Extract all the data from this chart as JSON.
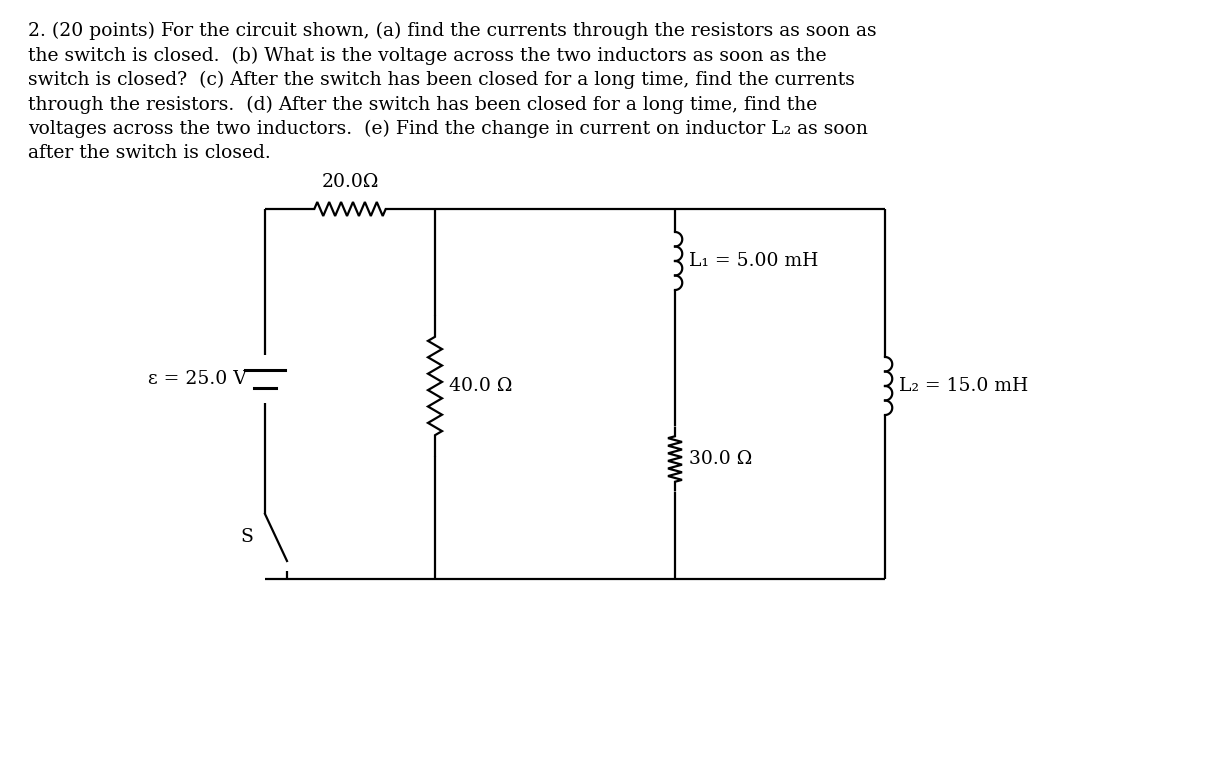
{
  "background_color": "#ffffff",
  "text_color": "#000000",
  "title_lines": [
    "2. (20 points) For the circuit shown, (a) find the currents through the resistors as soon as",
    "the switch is closed.  (b) What is the voltage across the two inductors as soon as the",
    "switch is closed?  (c) After the switch has been closed for a long time, find the currents",
    "through the resistors.  (d) After the switch has been closed for a long time, find the",
    "voltages across the two inductors.  (e) Find the change in current on inductor L₂ as soon",
    "after the switch is closed."
  ],
  "circuit": {
    "battery_label": "ε = 25.0 V",
    "R1_label": "20.0Ω",
    "R2_label": "40.0 Ω",
    "L1_label": "L₁ = 5.00 mH",
    "L2_label": "L₂ = 15.0 mH",
    "R3_label": "30.0 Ω",
    "switch_label": "S"
  },
  "fig_width": 12.18,
  "fig_height": 7.64,
  "dpi": 100,
  "text_fontsize": 13.5,
  "circuit_fontsize": 13.5
}
